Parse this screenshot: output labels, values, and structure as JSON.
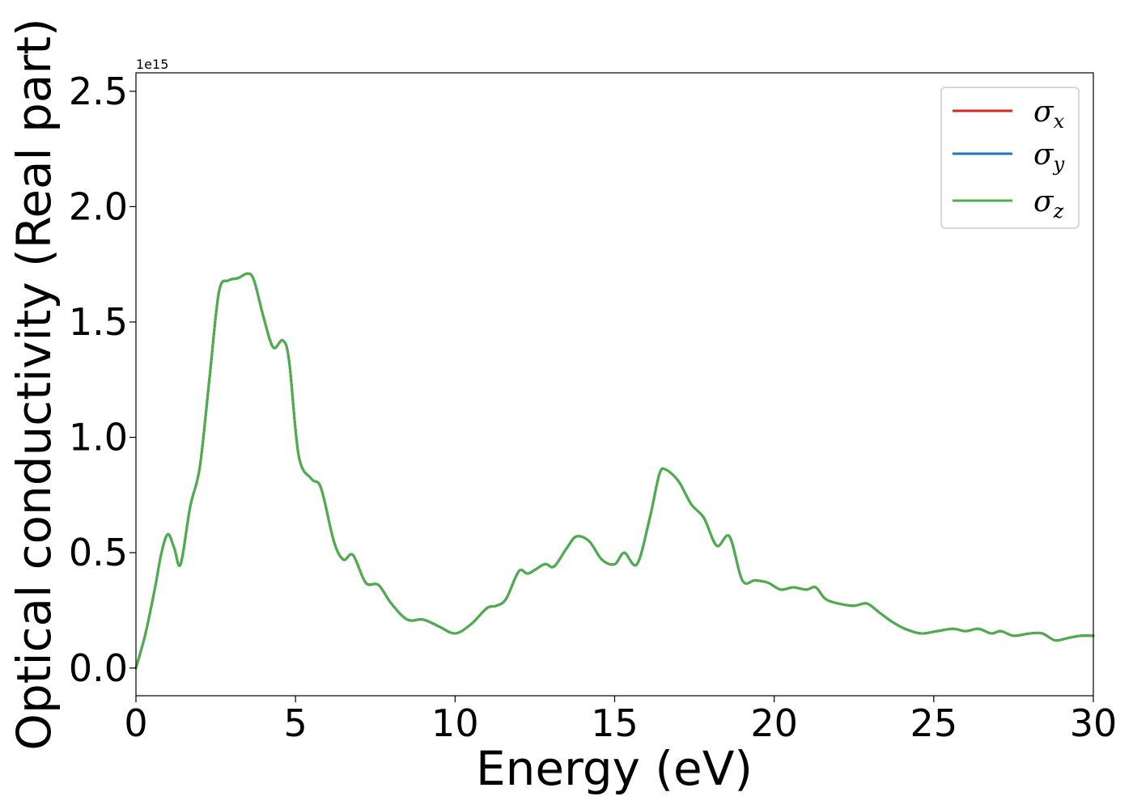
{
  "chart_data": {
    "type": "line",
    "title": "",
    "xlabel": "Energy (eV)",
    "ylabel": "Optical conductivity (Real part)",
    "y_offset_label": "1e15",
    "xlim": [
      0,
      30
    ],
    "ylim": [
      -0.12,
      2.58
    ],
    "xticks": [
      0,
      5,
      10,
      15,
      20,
      25,
      30
    ],
    "xtick_labels": [
      "0",
      "5",
      "10",
      "15",
      "20",
      "25",
      "30"
    ],
    "yticks": [
      0.0,
      0.5,
      1.0,
      1.5,
      2.0,
      2.5
    ],
    "ytick_labels": [
      "0.0",
      "0.5",
      "1.0",
      "1.5",
      "2.0",
      "2.5"
    ],
    "grid": false,
    "legend_position": "top-right",
    "x": [
      0,
      0.3,
      0.6,
      0.8,
      1.0,
      1.2,
      1.4,
      1.7,
      2.0,
      2.3,
      2.6,
      2.9,
      3.2,
      3.5,
      3.7,
      4.0,
      4.3,
      4.6,
      4.8,
      5.1,
      5.5,
      5.8,
      6.2,
      6.5,
      6.8,
      7.2,
      7.6,
      8.0,
      8.5,
      9.0,
      9.5,
      10.0,
      10.5,
      11.0,
      11.3,
      11.6,
      12.0,
      12.3,
      12.8,
      13.1,
      13.5,
      13.8,
      14.2,
      14.6,
      15.0,
      15.3,
      15.7,
      16.1,
      16.4,
      16.6,
      17.0,
      17.4,
      17.8,
      18.2,
      18.6,
      19.0,
      19.4,
      19.8,
      20.2,
      20.6,
      21.0,
      21.3,
      21.6,
      22.0,
      22.5,
      22.9,
      23.3,
      23.7,
      24.1,
      24.6,
      25.1,
      25.6,
      26.0,
      26.4,
      26.8,
      27.1,
      27.5,
      28.0,
      28.4,
      28.8,
      29.2,
      29.6,
      30.0
    ],
    "series": [
      {
        "name": "σx",
        "color": "#d62728",
        "values": [
          0.0,
          0.15,
          0.35,
          0.5,
          0.58,
          0.52,
          0.45,
          0.7,
          0.87,
          1.25,
          1.63,
          1.68,
          1.69,
          1.71,
          1.68,
          1.52,
          1.39,
          1.42,
          1.33,
          0.92,
          0.82,
          0.78,
          0.55,
          0.47,
          0.49,
          0.37,
          0.36,
          0.28,
          0.21,
          0.21,
          0.18,
          0.15,
          0.19,
          0.26,
          0.27,
          0.3,
          0.42,
          0.41,
          0.45,
          0.44,
          0.52,
          0.57,
          0.55,
          0.47,
          0.45,
          0.5,
          0.45,
          0.65,
          0.84,
          0.86,
          0.81,
          0.71,
          0.65,
          0.53,
          0.57,
          0.38,
          0.38,
          0.37,
          0.34,
          0.35,
          0.34,
          0.35,
          0.3,
          0.28,
          0.27,
          0.28,
          0.24,
          0.2,
          0.17,
          0.15,
          0.16,
          0.17,
          0.16,
          0.17,
          0.15,
          0.16,
          0.14,
          0.15,
          0.15,
          0.12,
          0.13,
          0.14,
          0.14
        ]
      },
      {
        "name": "σy",
        "color": "#1f77b4",
        "values": [
          0.0,
          0.15,
          0.35,
          0.5,
          0.58,
          0.52,
          0.45,
          0.7,
          0.87,
          1.25,
          1.63,
          1.68,
          1.69,
          1.71,
          1.68,
          1.52,
          1.39,
          1.42,
          1.33,
          0.92,
          0.82,
          0.78,
          0.55,
          0.47,
          0.49,
          0.37,
          0.36,
          0.28,
          0.21,
          0.21,
          0.18,
          0.15,
          0.19,
          0.26,
          0.27,
          0.3,
          0.42,
          0.41,
          0.45,
          0.44,
          0.52,
          0.57,
          0.55,
          0.47,
          0.45,
          0.5,
          0.45,
          0.65,
          0.84,
          0.86,
          0.81,
          0.71,
          0.65,
          0.53,
          0.57,
          0.38,
          0.38,
          0.37,
          0.34,
          0.35,
          0.34,
          0.35,
          0.3,
          0.28,
          0.27,
          0.28,
          0.24,
          0.2,
          0.17,
          0.15,
          0.16,
          0.17,
          0.16,
          0.17,
          0.15,
          0.16,
          0.14,
          0.15,
          0.15,
          0.12,
          0.13,
          0.14,
          0.14
        ]
      },
      {
        "name": "σz",
        "color": "#4daf4a",
        "values": [
          0.0,
          0.15,
          0.35,
          0.5,
          0.58,
          0.52,
          0.45,
          0.7,
          0.87,
          1.25,
          1.63,
          1.68,
          1.69,
          1.71,
          1.68,
          1.52,
          1.39,
          1.42,
          1.33,
          0.92,
          0.82,
          0.78,
          0.55,
          0.47,
          0.49,
          0.37,
          0.36,
          0.28,
          0.21,
          0.21,
          0.18,
          0.15,
          0.19,
          0.26,
          0.27,
          0.3,
          0.42,
          0.41,
          0.45,
          0.44,
          0.52,
          0.57,
          0.55,
          0.47,
          0.45,
          0.5,
          0.45,
          0.65,
          0.84,
          0.86,
          0.81,
          0.71,
          0.65,
          0.53,
          0.57,
          0.38,
          0.38,
          0.37,
          0.34,
          0.35,
          0.34,
          0.35,
          0.3,
          0.28,
          0.27,
          0.28,
          0.24,
          0.2,
          0.17,
          0.15,
          0.16,
          0.17,
          0.16,
          0.17,
          0.15,
          0.16,
          0.14,
          0.15,
          0.15,
          0.12,
          0.13,
          0.14,
          0.14
        ]
      }
    ],
    "legend": [
      {
        "symbol": "σ",
        "subscript": "x",
        "color": "#d62728"
      },
      {
        "symbol": "σ",
        "subscript": "y",
        "color": "#1f77b4"
      },
      {
        "symbol": "σ",
        "subscript": "z",
        "color": "#4daf4a"
      }
    ]
  }
}
